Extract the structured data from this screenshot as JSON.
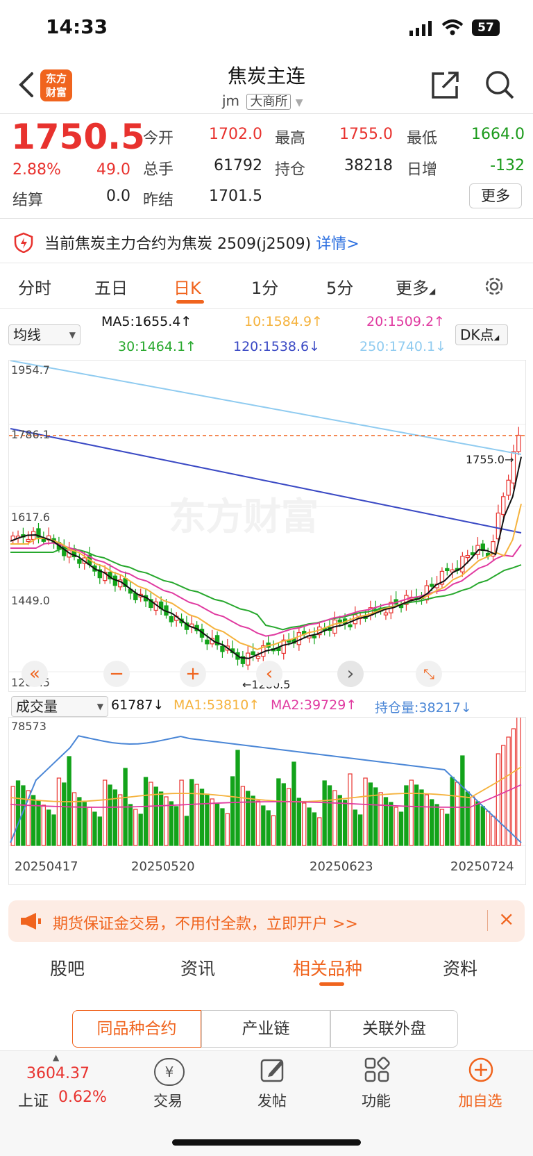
{
  "status_bar": {
    "time": "14:33",
    "battery": "57"
  },
  "header": {
    "title": "焦炭主连",
    "code": "jm",
    "exchange": "大商所",
    "logo_line1": "东方",
    "logo_line2": "财富"
  },
  "quote": {
    "price": "1750.5",
    "change_pct": "2.88%",
    "change": "49.0",
    "open_label": "今开",
    "open": "1702.0",
    "high_label": "最高",
    "high": "1755.0",
    "low_label": "最低",
    "low": "1664.0",
    "volume_label": "总手",
    "volume": "61792",
    "oi_label": "持仓",
    "oi": "38218",
    "daily_inc_label": "日增",
    "daily_inc": "-132",
    "settle_label": "结算",
    "settle": "0.0",
    "prev_settle_label": "昨结",
    "prev_settle": "1701.5",
    "more_label": "更多"
  },
  "notice": {
    "text": "当前焦炭主力合约为焦炭 2509(j2509)",
    "link": "详情>"
  },
  "tabs": [
    "分时",
    "五日",
    "日K",
    "1分",
    "5分",
    "更多"
  ],
  "active_tab": "日K",
  "ma_bar": {
    "select": "均线",
    "ma5": "MA5:1655.4↑",
    "ma10": "10:1584.9↑",
    "ma20": "20:1509.2↑",
    "ma30": "30:1464.1↑",
    "ma120": "120:1538.6↓",
    "ma250": "250:1740.1↓",
    "dk": "DK点"
  },
  "colors": {
    "accent": "#f0641e",
    "up": "#e8322e",
    "down": "#13a31a",
    "ma5": "#111111",
    "ma10": "#f5b23c",
    "ma20": "#e03aa0",
    "ma30": "#27a82d",
    "ma120": "#3a49c4",
    "ma250": "#8fcbf0",
    "oi": "#4a86d6"
  },
  "chart_data": [
    {
      "type": "candlestick",
      "y_ticks": [
        "1954.7",
        "1786.1",
        "1617.6",
        "1449.0",
        "1280.5"
      ],
      "ylim": [
        1280.5,
        1954.7
      ],
      "max_marker": "1755.0→",
      "min_marker": "←1280.5",
      "x_ticks": [
        "20250417",
        "20250520",
        "20250623",
        "20250724"
      ]
    },
    {
      "type": "bar",
      "select": "成交量",
      "volume": "61787↓",
      "ma1": "MA1:53810↑",
      "ma2": "MA2:39729↑",
      "oi": "持仓量:38217↓",
      "y_max_label": "78573",
      "ylim": [
        0,
        78573
      ]
    }
  ],
  "ad": {
    "text": "期货保证金交易，不用付全款，立即开户 >>"
  },
  "bottom_tabs": [
    "股吧",
    "资讯",
    "相关品种",
    "资料"
  ],
  "segments": [
    "同品种合约",
    "产业链",
    "关联外盘"
  ],
  "bottom_nav": {
    "index_value": "3604.37",
    "index_name": "上证",
    "index_pct": "0.62%",
    "trade": "交易",
    "post": "发帖",
    "func": "功能",
    "watch": "加自选",
    "trade_icon": "¥"
  }
}
